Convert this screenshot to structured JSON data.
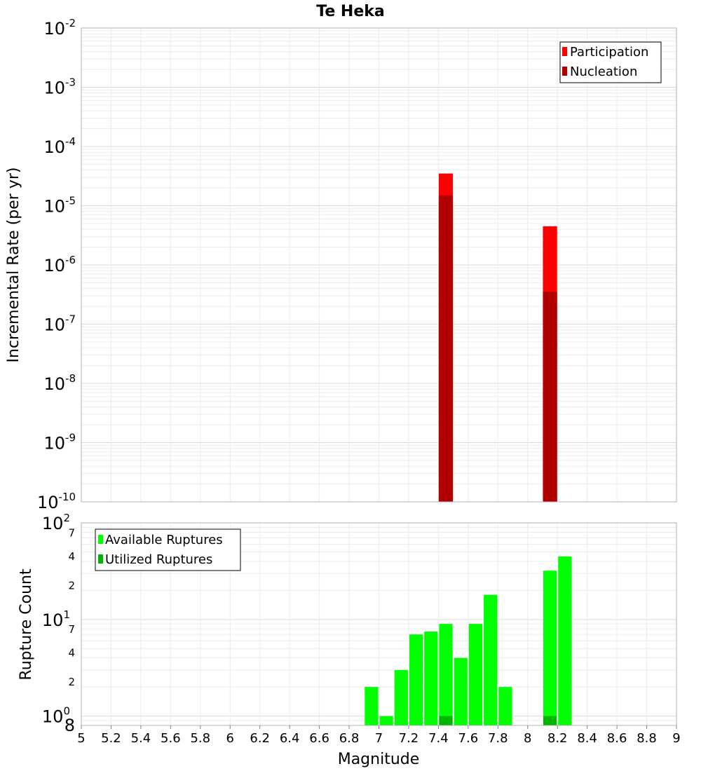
{
  "chart_data": [
    {
      "type": "bar",
      "title": "Te Heka",
      "xlabel": "",
      "ylabel": "Incremental Rate (per yr)",
      "yscale": "log",
      "xlim": [
        5,
        9
      ],
      "ylim": [
        1e-10,
        0.01
      ],
      "y_tick_labels": [
        {
          "base": "10",
          "exp": "-10",
          "value": 1e-10
        },
        {
          "base": "10",
          "exp": "-9",
          "value": 1e-09
        },
        {
          "base": "10",
          "exp": "-8",
          "value": 1e-08
        },
        {
          "base": "10",
          "exp": "-7",
          "value": 1e-07
        },
        {
          "base": "10",
          "exp": "-6",
          "value": 1e-06
        },
        {
          "base": "10",
          "exp": "-5",
          "value": 1e-05
        },
        {
          "base": "10",
          "exp": "-4",
          "value": 0.0001
        },
        {
          "base": "10",
          "exp": "-3",
          "value": 0.001
        },
        {
          "base": "10",
          "exp": "-2",
          "value": 0.01
        }
      ],
      "bin_width": 0.1,
      "grid": true,
      "legend_position": "top-right",
      "series": [
        {
          "name": "Participation",
          "color": "#ff0000",
          "x": [
            7.45,
            8.15
          ],
          "values": [
            3.5e-05,
            4.5e-06
          ]
        },
        {
          "name": "Nucleation",
          "color": "#b20000",
          "x": [
            7.45,
            8.15
          ],
          "values": [
            1.5e-05,
            3.5e-07
          ]
        }
      ]
    },
    {
      "type": "bar",
      "title": "",
      "xlabel": "Magnitude",
      "ylabel": "Rupture Count",
      "yscale": "log",
      "xlim": [
        5,
        9
      ],
      "ylim": [
        0.8,
        100
      ],
      "x_ticks": [
        "5",
        "5.2",
        "5.4",
        "5.6",
        "5.8",
        "6",
        "6.2",
        "6.4",
        "6.6",
        "6.8",
        "7",
        "7.2",
        "7.4",
        "7.6",
        "7.8",
        "8",
        "8.2",
        "8.4",
        "8.6",
        "8.8",
        "9"
      ],
      "y_major_ticks": [
        {
          "base": "10",
          "exp": "0",
          "value": 1
        },
        {
          "base": "10",
          "exp": "1",
          "value": 10
        },
        {
          "base": "10",
          "exp": "2",
          "value": 100
        }
      ],
      "y_minor_ticks": [
        {
          "label": "8",
          "value": 0.8
        },
        {
          "label": "2",
          "value": 2
        },
        {
          "label": "4",
          "value": 4
        },
        {
          "label": "7",
          "value": 7
        },
        {
          "label": "2",
          "value": 20
        },
        {
          "label": "4",
          "value": 40
        },
        {
          "label": "7",
          "value": 70
        }
      ],
      "bin_width": 0.1,
      "grid": true,
      "legend_position": "top-left",
      "series": [
        {
          "name": "Available Ruptures",
          "color": "#00ff00",
          "x": [
            6.95,
            7.05,
            7.15,
            7.25,
            7.35,
            7.45,
            7.55,
            7.65,
            7.75,
            7.85,
            8.15,
            8.25
          ],
          "values": [
            2,
            1,
            3,
            7,
            7.5,
            9,
            4,
            9,
            18,
            2,
            32,
            45
          ]
        },
        {
          "name": "Utilized Ruptures",
          "color": "#00b400",
          "x": [
            7.45,
            8.15
          ],
          "values": [
            1,
            1
          ]
        }
      ]
    }
  ]
}
